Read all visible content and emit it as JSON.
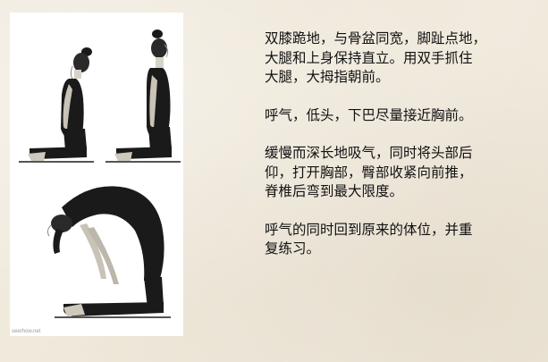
{
  "colors": {
    "background": "#efe8da",
    "figure_dark": "#1a1a1a",
    "text": "#111111"
  },
  "photo_caption": "seerhow.net",
  "instructions": [
    "双膝跪地，与骨盆同宽，脚趾点地，\n大腿和上身保持直立。用双手抓住\n大腿，大拇指朝前。",
    "呼气，低头，下巴尽量接近胸前。",
    "缓慢而深长地吸气，同时将头部后\n仰，打开胸部，臀部收紧向前推，\n脊椎后弯到最大限度。",
    "呼气的同时回到原来的体位，并重\n复练习。"
  ]
}
